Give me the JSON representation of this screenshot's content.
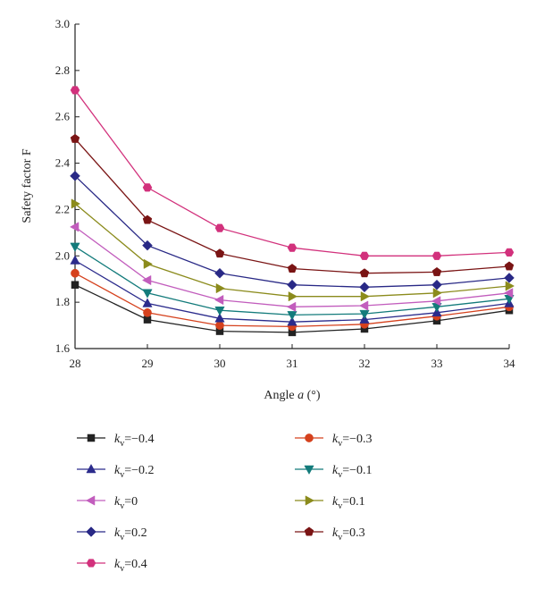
{
  "chart_data": {
    "type": "line",
    "title": "",
    "xlabel": {
      "prefix": "Angle ",
      "var": "a",
      "suffix": " (°)"
    },
    "ylabel": "Safety factor F",
    "x": [
      28,
      29,
      30,
      31,
      32,
      33,
      34
    ],
    "xlim": [
      28,
      34
    ],
    "ylim": [
      1.6,
      3.0
    ],
    "y_ticks": [
      "1.6",
      "1.8",
      "2.0",
      "2.2",
      "2.4",
      "2.6",
      "2.8",
      "3.0"
    ],
    "x_ticks": [
      "28",
      "29",
      "30",
      "31",
      "32",
      "33",
      "34"
    ],
    "grid": false,
    "legend_position": "bottom",
    "series": [
      {
        "name": "k_v=−0.4",
        "sym": "k",
        "sub": "v",
        "val": "=−0.4",
        "color": "#222222",
        "marker": "square",
        "values": [
          1.875,
          1.725,
          1.675,
          1.67,
          1.685,
          1.72,
          1.765
        ]
      },
      {
        "name": "k_v=−0.3",
        "sym": "k",
        "sub": "v",
        "val": "=−0.3",
        "color": "#d5411d",
        "marker": "circle",
        "values": [
          1.925,
          1.755,
          1.7,
          1.695,
          1.705,
          1.74,
          1.78
        ]
      },
      {
        "name": "k_v=−0.2",
        "sym": "k",
        "sub": "v",
        "val": "=−0.2",
        "color": "#2b2b8c",
        "marker": "triangle-up",
        "values": [
          1.98,
          1.795,
          1.73,
          1.715,
          1.725,
          1.755,
          1.795
        ]
      },
      {
        "name": "k_v=−0.1",
        "sym": "k",
        "sub": "v",
        "val": "=−0.1",
        "color": "#137b7b",
        "marker": "triangle-down",
        "values": [
          2.04,
          1.84,
          1.765,
          1.745,
          1.75,
          1.78,
          1.815
        ]
      },
      {
        "name": "k_v=0",
        "sym": "k",
        "sub": "v",
        "val": "=0",
        "color": "#c25dbd",
        "marker": "triangle-left",
        "values": [
          2.125,
          1.895,
          1.81,
          1.78,
          1.785,
          1.805,
          1.84
        ]
      },
      {
        "name": "k_v=0.1",
        "sym": "k",
        "sub": "v",
        "val": "=0.1",
        "color": "#8b8b1c",
        "marker": "triangle-right",
        "values": [
          2.225,
          1.965,
          1.86,
          1.825,
          1.825,
          1.84,
          1.87
        ]
      },
      {
        "name": "k_v=0.2",
        "sym": "k",
        "sub": "v",
        "val": "=0.2",
        "color": "#292986",
        "marker": "diamond",
        "values": [
          2.345,
          2.045,
          1.925,
          1.875,
          1.865,
          1.875,
          1.905
        ]
      },
      {
        "name": "k_v=0.3",
        "sym": "k",
        "sub": "v",
        "val": "=0.3",
        "color": "#7a1414",
        "marker": "pentagon",
        "values": [
          2.505,
          2.155,
          2.01,
          1.945,
          1.925,
          1.93,
          1.955
        ]
      },
      {
        "name": "k_v=0.4",
        "sym": "k",
        "sub": "v",
        "val": "=0.4",
        "color": "#d2317c",
        "marker": "hexagon",
        "values": [
          2.715,
          2.295,
          2.12,
          2.035,
          2.0,
          2.0,
          2.015
        ]
      }
    ]
  }
}
